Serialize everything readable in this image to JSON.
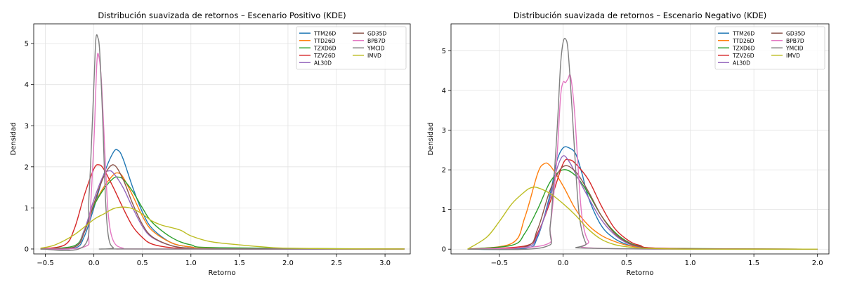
{
  "chart_data": [
    {
      "type": "line",
      "title": "Distribución suavizada de retornos – Escenario Positivo (KDE)",
      "xlabel": "Retorno",
      "ylabel": "Densidad",
      "xlim": [
        -0.62,
        3.26
      ],
      "ylim": [
        -0.12,
        5.48
      ],
      "xticks": [
        -0.5,
        0.0,
        0.5,
        1.0,
        1.5,
        2.0,
        2.5,
        3.0
      ],
      "xtick_labels": [
        "−0.5",
        "0.0",
        "0.5",
        "1.0",
        "1.5",
        "2.0",
        "2.5",
        "3.0"
      ],
      "yticks": [
        0,
        1,
        2,
        3,
        4,
        5
      ],
      "ytick_labels": [
        "0",
        "1",
        "2",
        "3",
        "4",
        "5"
      ],
      "grid": true,
      "legend": "top-right",
      "legend_cols": 2,
      "series": [
        {
          "name": "TTM26D",
          "color": "#1f77b4",
          "x": [
            -0.55,
            -0.2,
            -0.1,
            0.0,
            0.1,
            0.2,
            0.25,
            0.3,
            0.4,
            0.5,
            0.6,
            0.8,
            1.0,
            1.3,
            3.2
          ],
          "y": [
            0,
            0.02,
            0.3,
            1.0,
            1.8,
            2.35,
            2.4,
            2.2,
            1.5,
            0.9,
            0.5,
            0.15,
            0.05,
            0.01,
            0
          ]
        },
        {
          "name": "TTD26D",
          "color": "#ff7f0e",
          "x": [
            -0.55,
            -0.2,
            -0.1,
            0.0,
            0.1,
            0.2,
            0.25,
            0.3,
            0.4,
            0.5,
            0.6,
            0.8,
            1.0,
            1.3,
            3.2
          ],
          "y": [
            0,
            0.05,
            0.4,
            1.05,
            1.5,
            1.8,
            1.85,
            1.75,
            1.3,
            0.8,
            0.45,
            0.15,
            0.05,
            0.01,
            0
          ]
        },
        {
          "name": "TZXD6D",
          "color": "#2ca02c",
          "x": [
            -0.55,
            -0.2,
            -0.1,
            0.0,
            0.1,
            0.2,
            0.25,
            0.3,
            0.4,
            0.5,
            0.6,
            0.8,
            1.0,
            1.3,
            3.2
          ],
          "y": [
            0,
            0.08,
            0.45,
            1.05,
            1.45,
            1.72,
            1.75,
            1.7,
            1.4,
            1.0,
            0.65,
            0.28,
            0.1,
            0.03,
            0
          ]
        },
        {
          "name": "TZV26D",
          "color": "#d62728",
          "x": [
            -0.55,
            -0.3,
            -0.2,
            -0.1,
            0.0,
            0.05,
            0.1,
            0.2,
            0.3,
            0.4,
            0.5,
            0.6,
            0.8,
            1.0,
            1.3,
            3.2
          ],
          "y": [
            0,
            0.1,
            0.5,
            1.3,
            1.95,
            2.05,
            1.95,
            1.5,
            1.0,
            0.55,
            0.28,
            0.12,
            0.03,
            0.01,
            0,
            0
          ]
        },
        {
          "name": "AL30D",
          "color": "#9467bd",
          "x": [
            -0.55,
            -0.2,
            -0.1,
            0.0,
            0.1,
            0.15,
            0.2,
            0.3,
            0.4,
            0.5,
            0.6,
            0.8,
            1.0,
            1.3,
            3.2
          ],
          "y": [
            0,
            0.05,
            0.45,
            1.2,
            1.8,
            1.9,
            1.85,
            1.5,
            1.0,
            0.55,
            0.28,
            0.08,
            0.02,
            0,
            0
          ]
        },
        {
          "name": "GD35D",
          "color": "#8c564b",
          "x": [
            -0.55,
            -0.2,
            -0.1,
            0.0,
            0.1,
            0.2,
            0.3,
            0.4,
            0.5,
            0.6,
            0.8,
            1.0,
            1.3,
            3.2
          ],
          "y": [
            0,
            0.05,
            0.4,
            1.1,
            1.75,
            2.05,
            1.7,
            1.1,
            0.6,
            0.3,
            0.08,
            0.02,
            0,
            0
          ]
        },
        {
          "name": "BPB7D",
          "color": "#e377c2",
          "x": [
            -0.55,
            -0.1,
            -0.05,
            0.0,
            0.03,
            0.05,
            0.08,
            0.12,
            0.15,
            0.2,
            0.3,
            0.5,
            3.2
          ],
          "y": [
            0,
            0.05,
            0.5,
            2.6,
            4.5,
            4.7,
            4.0,
            2.0,
            0.8,
            0.2,
            0.02,
            0,
            0
          ]
        },
        {
          "name": "YMCID",
          "color": "#7f7f7f",
          "x": [
            -0.55,
            -0.1,
            -0.05,
            0.0,
            0.02,
            0.04,
            0.06,
            0.09,
            0.12,
            0.15,
            0.2,
            0.3,
            3.2
          ],
          "y": [
            0,
            0.08,
            1.3,
            4.0,
            5.1,
            5.15,
            4.8,
            3.2,
            1.2,
            0.3,
            0.03,
            0,
            0
          ]
        },
        {
          "name": "IMVD",
          "color": "#bcbd22",
          "x": [
            -0.55,
            -0.4,
            -0.2,
            0.0,
            0.1,
            0.2,
            0.3,
            0.4,
            0.5,
            0.6,
            0.7,
            0.8,
            0.9,
            1.0,
            1.2,
            1.5,
            1.8,
            2.0,
            2.5,
            3.2
          ],
          "y": [
            0.02,
            0.1,
            0.35,
            0.72,
            0.85,
            0.98,
            1.02,
            0.98,
            0.85,
            0.68,
            0.58,
            0.52,
            0.45,
            0.32,
            0.18,
            0.1,
            0.04,
            0.02,
            0.005,
            0
          ]
        }
      ]
    },
    {
      "type": "line",
      "title": "Distribución suavizada de retornos – Escenario Negativo (KDE)",
      "xlabel": "Retorno",
      "ylabel": "Densidad",
      "xlim": [
        -0.88,
        2.09
      ],
      "ylim": [
        -0.12,
        5.68
      ],
      "xticks": [
        -0.5,
        0.0,
        0.5,
        1.0,
        1.5,
        2.0
      ],
      "xtick_labels": [
        "−0.5",
        "0.0",
        "0.5",
        "1.0",
        "1.5",
        "2.0"
      ],
      "yticks": [
        0,
        1,
        2,
        3,
        4,
        5
      ],
      "ytick_labels": [
        "0",
        "1",
        "2",
        "3",
        "4",
        "5"
      ],
      "grid": true,
      "legend": "top-right",
      "legend_cols": 2,
      "series": [
        {
          "name": "TTM26D",
          "color": "#1f77b4",
          "x": [
            -0.75,
            -0.3,
            -0.2,
            -0.1,
            -0.05,
            0.0,
            0.05,
            0.1,
            0.15,
            0.2,
            0.3,
            0.4,
            0.5,
            0.6,
            0.8,
            2.0
          ],
          "y": [
            0,
            0.02,
            0.3,
            1.4,
            2.2,
            2.55,
            2.55,
            2.4,
            1.9,
            1.3,
            0.6,
            0.28,
            0.12,
            0.04,
            0.01,
            0
          ]
        },
        {
          "name": "TTD26D",
          "color": "#ff7f0e",
          "x": [
            -0.75,
            -0.4,
            -0.3,
            -0.2,
            -0.15,
            -0.1,
            0.0,
            0.1,
            0.2,
            0.3,
            0.4,
            0.5,
            0.6,
            0.8,
            2.0
          ],
          "y": [
            0,
            0.15,
            0.8,
            1.9,
            2.15,
            2.1,
            1.6,
            1.0,
            0.6,
            0.35,
            0.2,
            0.1,
            0.05,
            0.01,
            0
          ]
        },
        {
          "name": "TZXD6D",
          "color": "#2ca02c",
          "x": [
            -0.75,
            -0.4,
            -0.3,
            -0.2,
            -0.1,
            0.0,
            0.1,
            0.2,
            0.3,
            0.4,
            0.5,
            0.6,
            0.8,
            2.0
          ],
          "y": [
            0,
            0.1,
            0.4,
            1.0,
            1.7,
            2.0,
            1.85,
            1.4,
            0.85,
            0.45,
            0.2,
            0.08,
            0.02,
            0
          ]
        },
        {
          "name": "TZV26D",
          "color": "#d62728",
          "x": [
            -0.75,
            -0.3,
            -0.2,
            -0.1,
            0.0,
            0.05,
            0.1,
            0.2,
            0.3,
            0.4,
            0.5,
            0.6,
            0.8,
            2.0
          ],
          "y": [
            0,
            0.08,
            0.4,
            1.2,
            2.15,
            2.25,
            2.15,
            1.75,
            1.1,
            0.55,
            0.25,
            0.1,
            0.02,
            0
          ]
        },
        {
          "name": "AL30D",
          "color": "#9467bd",
          "x": [
            -0.75,
            -0.3,
            -0.2,
            -0.1,
            -0.05,
            0.0,
            0.05,
            0.1,
            0.2,
            0.3,
            0.4,
            0.5,
            0.6,
            0.8,
            2.0
          ],
          "y": [
            0,
            0.05,
            0.35,
            1.3,
            2.0,
            2.35,
            2.2,
            1.9,
            1.3,
            0.75,
            0.38,
            0.16,
            0.06,
            0.01,
            0
          ]
        },
        {
          "name": "GD35D",
          "color": "#8c564b",
          "x": [
            -0.75,
            -0.3,
            -0.2,
            -0.1,
            0.0,
            0.1,
            0.2,
            0.3,
            0.4,
            0.5,
            0.6,
            0.8,
            2.0
          ],
          "y": [
            0,
            0.06,
            0.5,
            1.5,
            2.08,
            1.95,
            1.45,
            0.85,
            0.42,
            0.18,
            0.07,
            0.01,
            0
          ]
        },
        {
          "name": "BPB7D",
          "color": "#e377c2",
          "x": [
            -0.75,
            -0.15,
            -0.1,
            -0.05,
            -0.02,
            0.0,
            0.02,
            0.04,
            0.06,
            0.09,
            0.12,
            0.15,
            0.2,
            0.3,
            2.0
          ],
          "y": [
            0,
            0.1,
            0.6,
            2.2,
            3.8,
            4.2,
            4.2,
            4.3,
            4.35,
            3.5,
            2.0,
            0.8,
            0.2,
            0.02,
            0
          ]
        },
        {
          "name": "YMCID",
          "color": "#7f7f7f",
          "x": [
            -0.75,
            -0.15,
            -0.1,
            -0.05,
            -0.02,
            0.0,
            0.02,
            0.04,
            0.07,
            0.1,
            0.13,
            0.18,
            0.25,
            2.0
          ],
          "y": [
            0,
            0.05,
            0.6,
            2.8,
            4.6,
            5.2,
            5.3,
            5.0,
            3.6,
            2.0,
            0.8,
            0.15,
            0.02,
            0
          ]
        },
        {
          "name": "IMVD",
          "color": "#bcbd22",
          "x": [
            -0.75,
            -0.6,
            -0.5,
            -0.4,
            -0.3,
            -0.25,
            -0.2,
            -0.1,
            0.0,
            0.1,
            0.2,
            0.3,
            0.4,
            0.5,
            0.6,
            0.8,
            1.0,
            1.5,
            2.0
          ],
          "y": [
            0,
            0.3,
            0.7,
            1.15,
            1.45,
            1.55,
            1.55,
            1.4,
            1.15,
            0.85,
            0.5,
            0.25,
            0.12,
            0.06,
            0.03,
            0.01,
            0,
            0,
            0
          ]
        }
      ]
    }
  ]
}
